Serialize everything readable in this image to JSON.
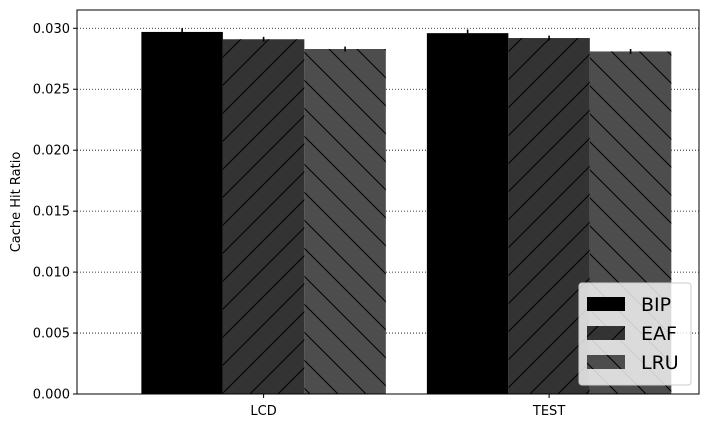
{
  "chart_data": {
    "type": "bar",
    "title": "",
    "xlabel": "",
    "ylabel": "Cache Hit Ratio",
    "categories": [
      "LCD",
      "TEST"
    ],
    "series": [
      {
        "name": "BIP",
        "values": [
          0.0297,
          0.0296
        ],
        "errors": [
          0.0003,
          0.0003
        ],
        "color": "#000000",
        "hatch": "none"
      },
      {
        "name": "EAF",
        "values": [
          0.0291,
          0.0292
        ],
        "errors": [
          0.0002,
          0.0002
        ],
        "color": "#333333",
        "hatch": "forward"
      },
      {
        "name": "LRU",
        "values": [
          0.0283,
          0.0281
        ],
        "errors": [
          0.0002,
          0.0002
        ],
        "color": "#4d4d4d",
        "hatch": "backward"
      }
    ],
    "ylim": [
      0,
      0.0315
    ],
    "yticks": [
      "0.000",
      "0.005",
      "0.010",
      "0.015",
      "0.020",
      "0.025",
      "0.030"
    ],
    "grid": "y-dotted",
    "legend_position": "bottom-right"
  }
}
